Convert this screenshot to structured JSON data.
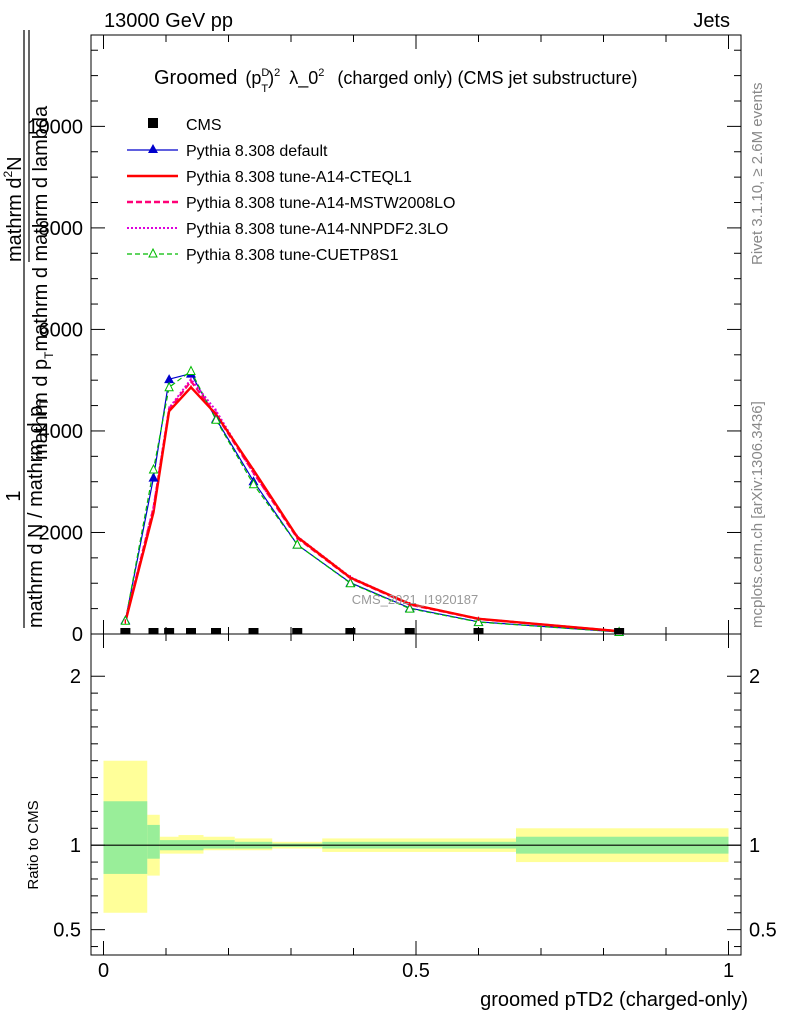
{
  "header": {
    "left": "13000 GeV pp",
    "right": "Jets"
  },
  "side_text": {
    "rivet": "Rivet 3.1.10, ≥ 2.6M events",
    "mcplots": "mcplots.cern.ch [arXiv:1306.3436]"
  },
  "watermark": "CMS_2021_I1920187",
  "plot_title": {
    "prefix": "Groomed",
    "pt": "p",
    "pt_sup": "D",
    "pt_sub": "T",
    "power": "2",
    "lambda": "λ_0",
    "lambda_sup": "2",
    "suffix": "(charged only) (CMS jet substructure)"
  },
  "chart_data": [
    {
      "type": "line",
      "panel": "main",
      "ylabel_numerator": "1",
      "ylabel_top": "mathrm d",
      "ylabel_top_sup": "2",
      "ylabel_top_tail": "N",
      "ylabel_bottom": "mathrm d p",
      "ylabel_bottom_sub": "T",
      "ylabel_bottom_tail": "mathrm d mathrm d lambda",
      "ylabel_denominator": "mathrm d N / mathrm d p",
      "ylabel_denominator_sub": "T",
      "xlim": [
        -0.02,
        1.02
      ],
      "ylim": [
        0,
        11800
      ],
      "yticks": [
        0,
        2000,
        4000,
        6000,
        8000,
        10000
      ],
      "ytick_labels": [
        "0",
        "2000",
        "4000",
        "6000",
        "8000",
        "10000"
      ],
      "x": [
        0.035,
        0.08,
        0.105,
        0.14,
        0.18,
        0.24,
        0.31,
        0.395,
        0.49,
        0.6,
        0.825
      ],
      "cms_y": [
        0,
        0,
        0,
        0,
        0,
        0,
        0,
        0,
        0,
        0,
        0
      ],
      "series": [
        {
          "name": "Pythia 8.308 default",
          "values": [
            270,
            3080,
            5020,
            5130,
            4240,
            3010,
            1760,
            1010,
            510,
            240,
            40
          ]
        },
        {
          "name": "Pythia 8.308 tune-A14-CTEQL1",
          "values": [
            240,
            2400,
            4390,
            4860,
            4330,
            3230,
            1910,
            1110,
            590,
            300,
            55
          ]
        },
        {
          "name": "Pythia 8.308 tune-A14-MSTW2008LO",
          "values": [
            250,
            2480,
            4420,
            4980,
            4320,
            3180,
            1890,
            1100,
            580,
            295,
            55
          ]
        },
        {
          "name": "Pythia 8.308 tune-A14-NNPDF2.3LO",
          "values": [
            250,
            2500,
            4450,
            5020,
            4400,
            3170,
            1920,
            1120,
            590,
            300,
            55
          ]
        },
        {
          "name": "Pythia 8.308 tune-CUETP8S1",
          "values": [
            260,
            3240,
            4860,
            5180,
            4220,
            2950,
            1760,
            1000,
            500,
            235,
            40
          ]
        }
      ],
      "cms_label": "CMS",
      "colors": {
        "cms": "#000000",
        "default": "#0000cc",
        "cteql1": "#ff0000",
        "mstw": "#ff0077",
        "nnpdf": "#dd00dd",
        "cuetp8s1": "#00bb00"
      },
      "legend_position": "top-left"
    },
    {
      "type": "area",
      "panel": "ratio",
      "ylabel": "Ratio to CMS",
      "xlabel": "groomed pTD2 (charged-only)",
      "xlim": [
        -0.02,
        1.02
      ],
      "ylim": [
        0.35,
        2.25
      ],
      "yticks": [
        0.5,
        1,
        2
      ],
      "ytick_labels": [
        "0.5",
        "1",
        "2"
      ],
      "xticks": [
        0,
        0.5,
        1
      ],
      "xtick_labels": [
        "0",
        "0.5",
        "1"
      ],
      "bins": [
        {
          "lo": 0.0,
          "hi": 0.07,
          "inner": [
            0.83,
            1.26
          ],
          "outer": [
            0.6,
            1.5
          ]
        },
        {
          "lo": 0.07,
          "hi": 0.09,
          "inner": [
            0.92,
            1.12
          ],
          "outer": [
            0.82,
            1.18
          ]
        },
        {
          "lo": 0.09,
          "hi": 0.12,
          "inner": [
            0.97,
            1.03
          ],
          "outer": [
            0.95,
            1.05
          ]
        },
        {
          "lo": 0.12,
          "hi": 0.16,
          "inner": [
            0.97,
            1.03
          ],
          "outer": [
            0.95,
            1.06
          ]
        },
        {
          "lo": 0.16,
          "hi": 0.21,
          "inner": [
            0.98,
            1.03
          ],
          "outer": [
            0.97,
            1.05
          ]
        },
        {
          "lo": 0.21,
          "hi": 0.27,
          "inner": [
            0.98,
            1.02
          ],
          "outer": [
            0.97,
            1.04
          ]
        },
        {
          "lo": 0.27,
          "hi": 0.35,
          "inner": [
            0.99,
            1.01
          ],
          "outer": [
            0.98,
            1.02
          ]
        },
        {
          "lo": 0.35,
          "hi": 0.44,
          "inner": [
            0.98,
            1.02
          ],
          "outer": [
            0.96,
            1.04
          ]
        },
        {
          "lo": 0.44,
          "hi": 0.66,
          "inner": [
            0.98,
            1.02
          ],
          "outer": [
            0.96,
            1.04
          ]
        },
        {
          "lo": 0.66,
          "hi": 1.0,
          "inner": [
            0.95,
            1.05
          ],
          "outer": [
            0.9,
            1.1
          ]
        }
      ],
      "colors": {
        "inner": "#99ee99",
        "outer": "#ffff99",
        "line": "#000000"
      }
    }
  ]
}
